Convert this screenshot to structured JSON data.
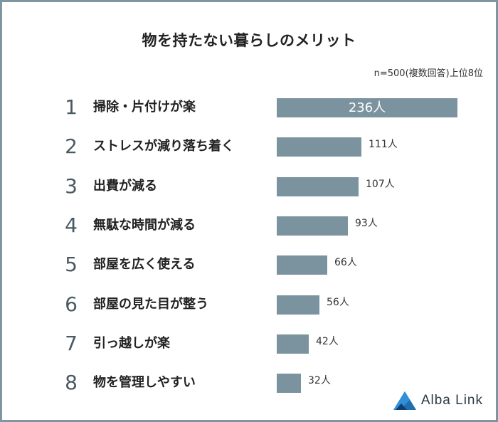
{
  "chart_data": {
    "type": "bar",
    "orientation": "horizontal",
    "title": "物を持たない暮らしのメリット",
    "note": "n=500(複数回答)上位8位",
    "unit": "人",
    "xlim": [
      0,
      236
    ],
    "bar_color": "#7b939e",
    "ranks": [
      "1",
      "2",
      "3",
      "4",
      "5",
      "6",
      "7",
      "8"
    ],
    "categories": [
      "掃除・片付けが楽",
      "ストレスが減り落ち着く",
      "出費が減る",
      "無駄な時間が減る",
      "部屋を広く使える",
      "部屋の見た目が整う",
      "引っ越しが楽",
      "物を管理しやすい"
    ],
    "values": [
      236,
      111,
      107,
      93,
      66,
      56,
      42,
      32
    ],
    "value_labels": [
      "236人",
      "111人",
      "107人",
      "93人",
      "66人",
      "56人",
      "42人",
      "32人"
    ]
  },
  "brand": {
    "name": "Alba Link",
    "icon": "triangle-logo-icon",
    "color": "#1f5f8b"
  }
}
